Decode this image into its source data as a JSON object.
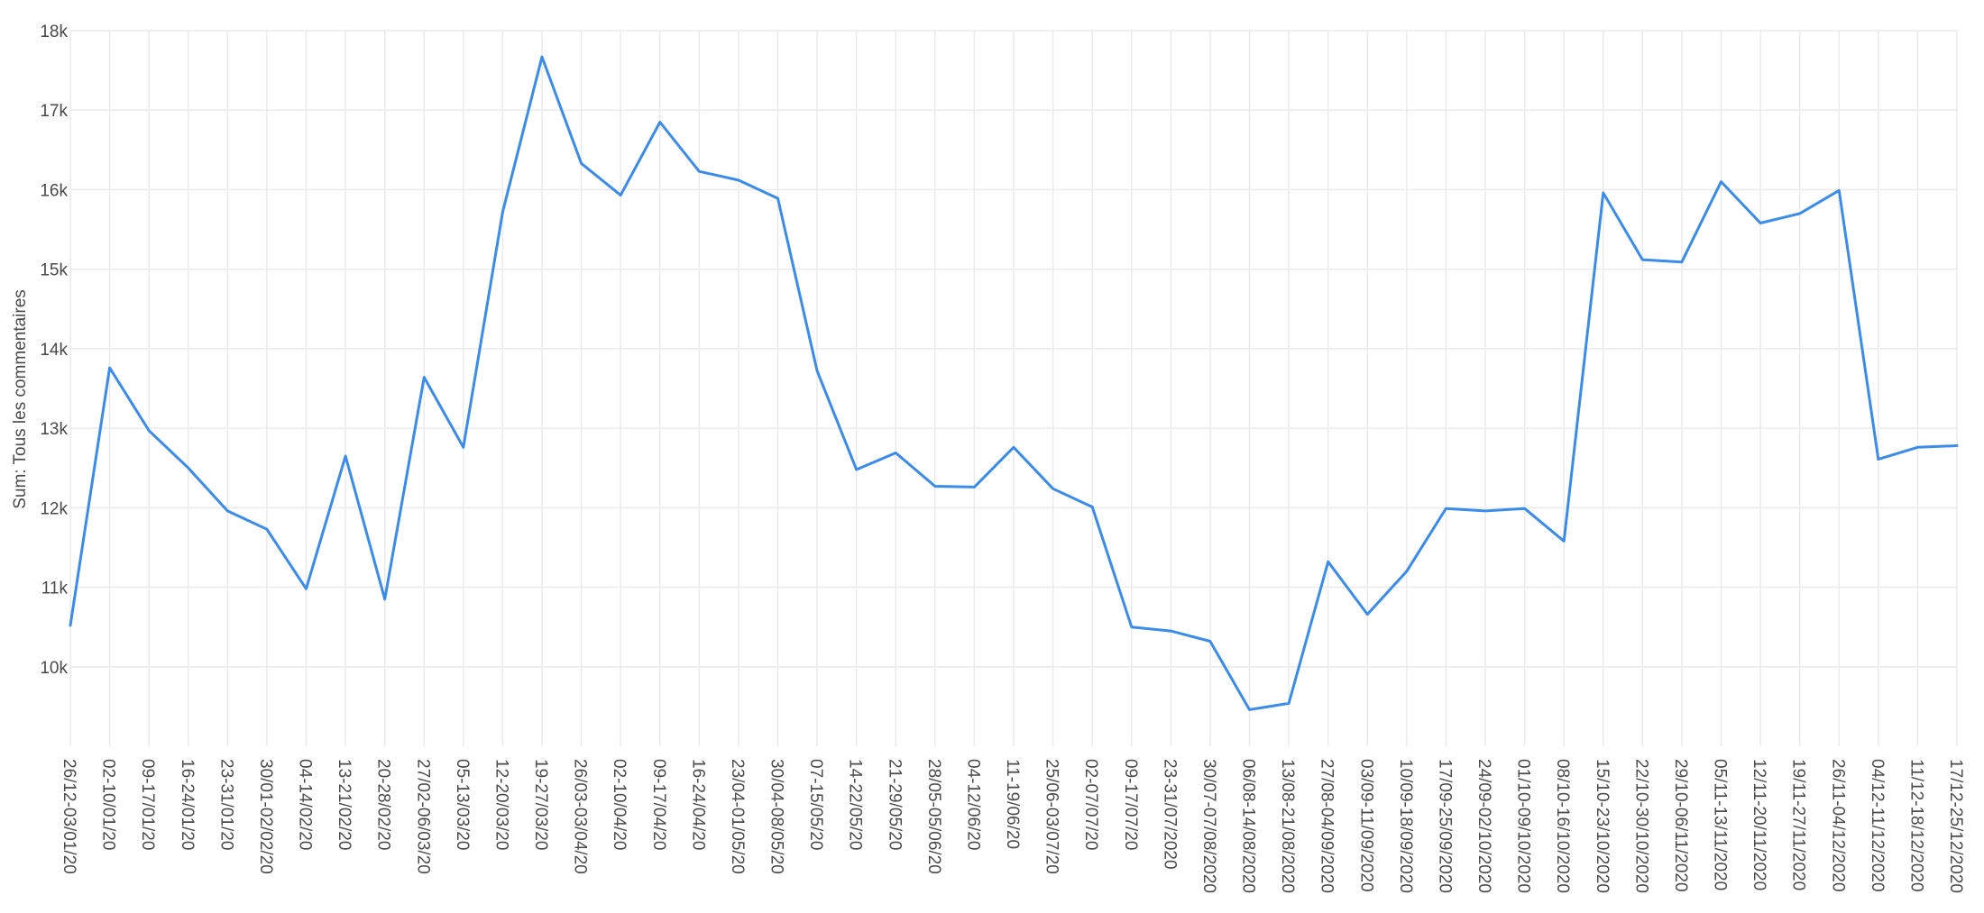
{
  "chart_data": {
    "type": "line",
    "title": "",
    "xlabel": "",
    "ylabel": "Sum: Tous les commentaires",
    "ylim": [
      9000,
      18000
    ],
    "yticks": [
      {
        "value": 10000,
        "label": "10k"
      },
      {
        "value": 11000,
        "label": "11k"
      },
      {
        "value": 12000,
        "label": "12k"
      },
      {
        "value": 13000,
        "label": "13k"
      },
      {
        "value": 14000,
        "label": "14k"
      },
      {
        "value": 15000,
        "label": "15k"
      },
      {
        "value": 16000,
        "label": "16k"
      },
      {
        "value": 17000,
        "label": "17k"
      },
      {
        "value": 18000,
        "label": "18k"
      }
    ],
    "grid": true,
    "legend": "none",
    "line_color": "#3b8beb",
    "categories": [
      "26/12-03/01/20",
      "02-10/01/20",
      "09-17/01/20",
      "16-24/01/20",
      "23-31/01/20",
      "30/01-02/02/20",
      "04-14/02/20",
      "13-21/02/20",
      "20-28/02/20",
      "27/02-06/03/20",
      "05-13/03/20",
      "12-20/03/20",
      "19-27/03/20",
      "26/03-03/04/20",
      "02-10/04/20",
      "09-17/04/20",
      "16-24/04/20",
      "23/04-01/05/20",
      "30/04-08/05/20",
      "07-15/05/20",
      "14-22/05/20",
      "21-29/05/20",
      "28/05-05/06/20",
      "04-12/06/20",
      "11-19/06/20",
      "25/06-03/07/20",
      "02-07/07/20",
      "09-17/07/20",
      "23-31/07/2020",
      "30/07-07/08/2020",
      "06/08-14/08/2020",
      "13/08-21/08/2020",
      "27/08-04/09/2020",
      "03/09-11/09/2020",
      "10/09-18/09/2020",
      "17/09-25/09/2020",
      "24/09-02/10/2020",
      "01/10-09/10/2020",
      "08/10-16/10/2020",
      "15/10-23/10/2020",
      "22/10-30/10/2020",
      "29/10-06/11/2020",
      "05/11-13/11/2020",
      "12/11-20/11/2020",
      "19/11-27/11/2020",
      "26/11-04/12/2020",
      "04/12-11/12/2020",
      "11/12-18/12/2020",
      "17/12-25/12/2020"
    ],
    "series": [
      {
        "values": [
          10520,
          13760,
          12970,
          12500,
          11960,
          11730,
          10980,
          12650,
          10850,
          13640,
          12760,
          15720,
          17670,
          16330,
          15930,
          16850,
          16230,
          16120,
          15890,
          13720,
          12480,
          12690,
          12270,
          12260,
          12760,
          12240,
          12010,
          10500,
          10450,
          10320,
          9460,
          9540,
          11320,
          10660,
          11200,
          11990,
          11960,
          11990,
          11580,
          15960,
          15120,
          15090,
          16100,
          15580,
          15700,
          15990,
          12610,
          12760,
          12780
        ]
      }
    ]
  }
}
